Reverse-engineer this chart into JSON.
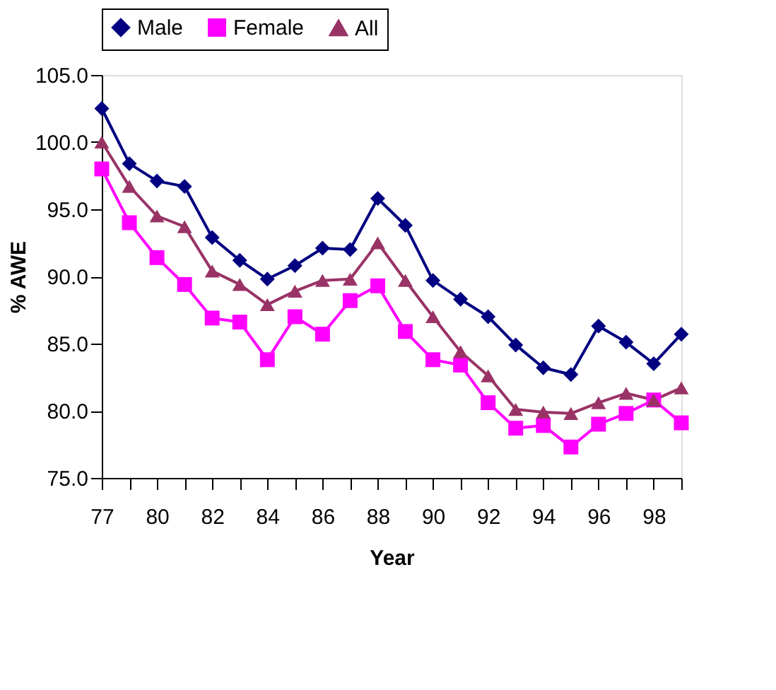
{
  "chart_data": {
    "type": "line",
    "xlabel": "Year",
    "ylabel": "% AWE",
    "categories": [
      "77",
      null,
      "80",
      null,
      "82",
      null,
      "84",
      null,
      "86",
      null,
      "88",
      null,
      "90",
      null,
      "92",
      null,
      "94",
      null,
      "96",
      null,
      "98",
      null
    ],
    "series": [
      {
        "name": "Male",
        "color": "#000080",
        "marker": "diamond",
        "values": [
          102.5,
          98.4,
          97.1,
          96.7,
          92.9,
          91.2,
          89.8,
          90.8,
          92.1,
          92.0,
          95.8,
          93.8,
          89.7,
          88.3,
          87.0,
          84.9,
          83.2,
          82.7,
          86.3,
          85.1,
          83.5,
          85.7
        ]
      },
      {
        "name": "Female",
        "color": "#ff00ff",
        "marker": "square",
        "values": [
          98.0,
          94.0,
          91.4,
          89.4,
          86.9,
          86.6,
          83.8,
          87.0,
          85.7,
          88.2,
          89.3,
          85.9,
          83.8,
          83.4,
          80.6,
          78.7,
          78.9,
          77.3,
          79.0,
          79.8,
          80.8,
          79.1
        ]
      },
      {
        "name": "All",
        "color": "#993366",
        "marker": "triangle",
        "values": [
          100.0,
          96.7,
          94.5,
          93.7,
          90.4,
          89.4,
          87.9,
          88.9,
          89.7,
          89.8,
          92.5,
          89.7,
          87.0,
          84.4,
          82.6,
          80.1,
          79.9,
          79.8,
          80.6,
          81.3,
          80.8,
          81.7
        ]
      }
    ],
    "ylim": [
      75,
      105
    ],
    "yticks": [
      {
        "value": 75,
        "label": "75.0"
      },
      {
        "value": 80,
        "label": "80.0"
      },
      {
        "value": 85,
        "label": "85.0"
      },
      {
        "value": 90,
        "label": "90.0"
      },
      {
        "value": 95,
        "label": "95.0"
      },
      {
        "value": 100,
        "label": "100.0"
      },
      {
        "value": 105,
        "label": "105.0"
      }
    ],
    "grid": false,
    "legend": "top",
    "line_style": "solid"
  }
}
